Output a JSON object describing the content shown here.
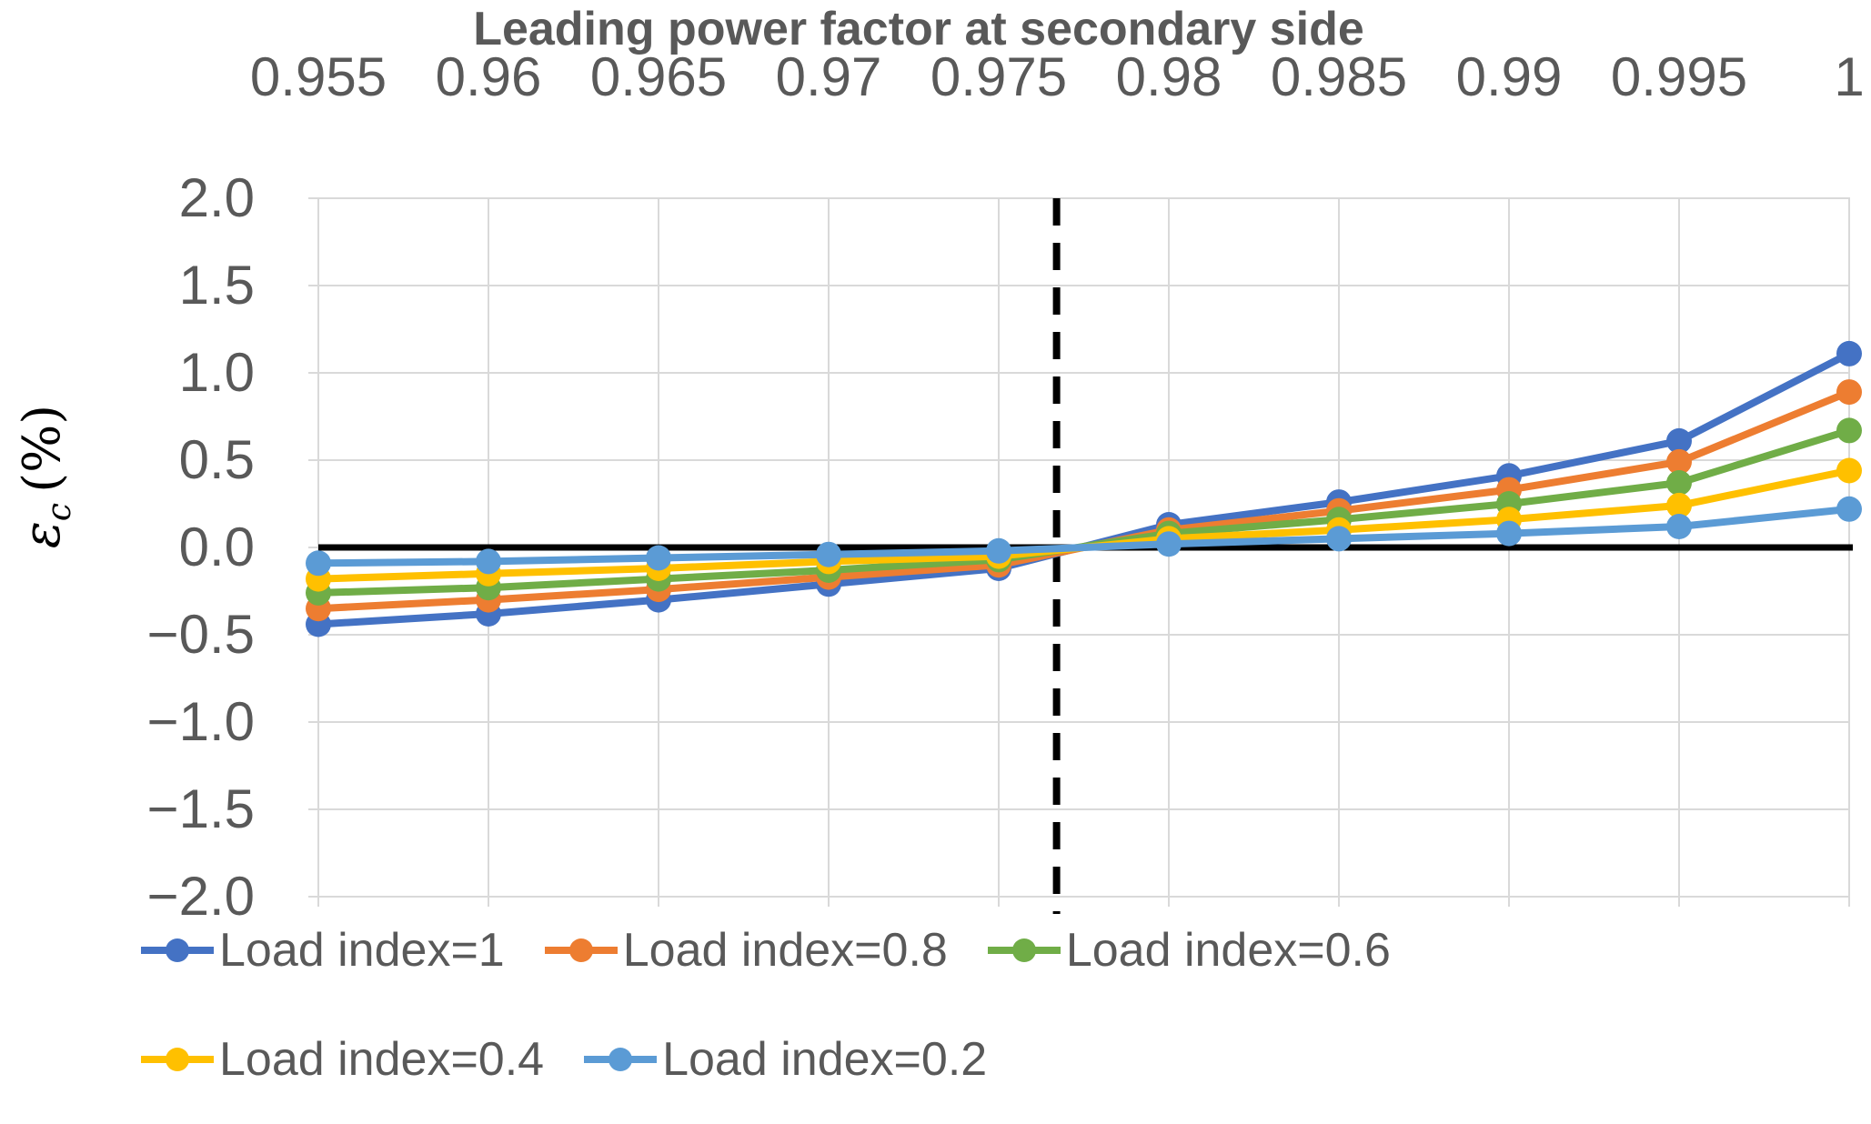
{
  "chart_data": {
    "type": "line",
    "x_axis": {
      "label": "Leading power factor at secondary side",
      "side": "top",
      "ticks": [
        0.955,
        0.96,
        0.965,
        0.97,
        0.975,
        0.98,
        0.985,
        0.99,
        0.995,
        1
      ],
      "tick_labels": [
        "0.955",
        "0.96",
        "0.965",
        "0.97",
        "0.975",
        "0.98",
        "0.985",
        "0.99",
        "0.995",
        "1"
      ],
      "range": [
        0.955,
        1
      ]
    },
    "y_axis": {
      "label": "εc (%)",
      "label_parts": {
        "symbol": "ε",
        "subscript": "c",
        "unit": "(%)"
      },
      "ticks": [
        2,
        1.5,
        1,
        0.5,
        0,
        -0.5,
        -1,
        -1.5,
        -2
      ],
      "tick_labels": [
        "2.0",
        "1.5",
        "1.0",
        "0.5",
        "0.0",
        "−0.5",
        "−1.0",
        "−1.5",
        "−2.0"
      ],
      "range": [
        -2,
        2
      ]
    },
    "grid": true,
    "legend_position": "bottom",
    "legend_rows": [
      3,
      2
    ],
    "x": [
      0.955,
      0.96,
      0.965,
      0.97,
      0.975,
      0.98,
      0.985,
      0.99,
      0.995,
      1
    ],
    "series": [
      {
        "name": "Load index=1",
        "color": "#4472C4",
        "values": [
          -0.44,
          -0.38,
          -0.3,
          -0.21,
          -0.12,
          0.13,
          0.26,
          0.41,
          0.61,
          1.11
        ]
      },
      {
        "name": "Load index=0.8",
        "color": "#ED7D31",
        "values": [
          -0.35,
          -0.3,
          -0.24,
          -0.17,
          -0.1,
          0.1,
          0.21,
          0.33,
          0.49,
          0.89
        ]
      },
      {
        "name": "Load index=0.6",
        "color": "#70AD47",
        "values": [
          -0.26,
          -0.23,
          -0.18,
          -0.13,
          -0.07,
          0.08,
          0.16,
          0.25,
          0.37,
          0.67
        ]
      },
      {
        "name": "Load index=0.4",
        "color": "#FFC000",
        "values": [
          -0.18,
          -0.15,
          -0.12,
          -0.08,
          -0.05,
          0.05,
          0.1,
          0.16,
          0.24,
          0.44
        ]
      },
      {
        "name": "Load index=0.2",
        "color": "#5B9BD5",
        "values": [
          -0.09,
          -0.08,
          -0.06,
          -0.04,
          -0.02,
          0.02,
          0.05,
          0.08,
          0.12,
          0.22
        ]
      }
    ],
    "annotations": {
      "zero_line_y": 0,
      "dashed_vline_x": 0.9767
    },
    "colors": {
      "grid": "#D9D9D9",
      "tick_text": "#595959",
      "axis_title_text": "#595959",
      "legend_text": "#595959",
      "annotation_line": "#000000"
    }
  }
}
